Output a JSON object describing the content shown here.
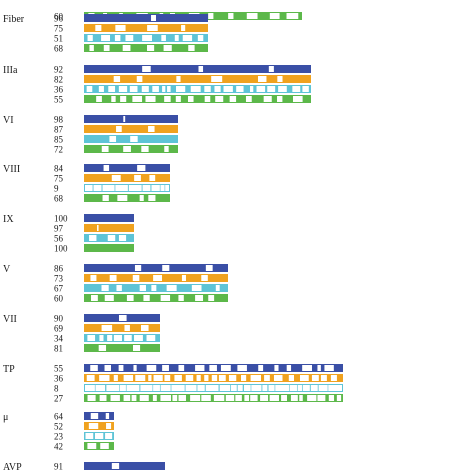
{
  "chart_data": {
    "type": "bar",
    "title": "",
    "xlabel": "",
    "ylabel": "",
    "grid": false,
    "legend": "none",
    "series": [
      {
        "color": "#3a4fa6"
      },
      {
        "color": "#f0a21f"
      },
      {
        "color": "#5ec4d6"
      },
      {
        "color": "#5cb84a"
      }
    ],
    "groups": [
      {
        "name": "",
        "values": [
          null,
          null,
          null,
          60
        ],
        "length": 218
      },
      {
        "name": "Fiber",
        "values": [
          96,
          75,
          51,
          68
        ],
        "length": 124
      },
      {
        "name": "IIIa",
        "values": [
          92,
          82,
          36,
          55
        ],
        "length": 227
      },
      {
        "name": "VI",
        "values": [
          98,
          87,
          85,
          72
        ],
        "length": 94
      },
      {
        "name": "VIII",
        "values": [
          84,
          75,
          9,
          68
        ],
        "length": 86
      },
      {
        "name": "IX",
        "values": [
          100,
          97,
          56,
          100
        ],
        "length": 50
      },
      {
        "name": "V",
        "values": [
          86,
          73,
          67,
          60
        ],
        "length": 144
      },
      {
        "name": "VII",
        "values": [
          90,
          69,
          34,
          81
        ],
        "length": 76
      },
      {
        "name": "TP",
        "values": [
          55,
          36,
          8,
          27
        ],
        "length": 259
      },
      {
        "name": "μ",
        "values": [
          64,
          52,
          23,
          42
        ],
        "length": 30
      },
      {
        "name": "AVP",
        "values": [
          91,
          null,
          null,
          null
        ],
        "length": 81
      }
    ]
  }
}
